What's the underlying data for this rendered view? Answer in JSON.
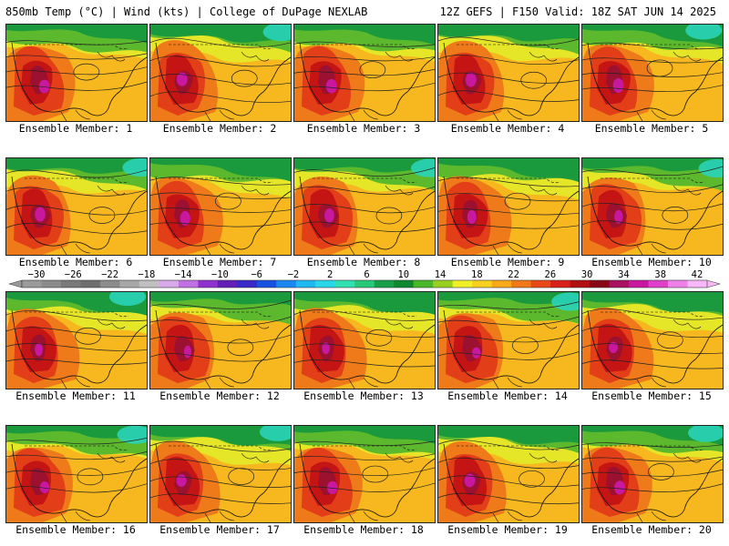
{
  "header": {
    "title_left": "850mb Temp (°C) | Wind (kts) | College of DuPage NEXLAB",
    "title_right": "12Z GEFS | F150 Valid: 18Z SAT JUN 14 2025"
  },
  "panel_label_prefix": "Ensemble Member: ",
  "members": [
    1,
    2,
    3,
    4,
    5,
    6,
    7,
    8,
    9,
    10,
    11,
    12,
    13,
    14,
    15,
    16,
    17,
    18,
    19,
    20
  ],
  "colorbar": {
    "tick_labels": [
      "−30",
      "−26",
      "−22",
      "−18",
      "−14",
      "−10",
      "−6",
      "−2",
      "2",
      "6",
      "10",
      "14",
      "18",
      "22",
      "26",
      "30",
      "34",
      "38",
      "42"
    ],
    "colors": [
      "#9a9a9a",
      "#8a8a8a",
      "#7a7a7a",
      "#6e6e6e",
      "#8c8c8c",
      "#a8a8a8",
      "#c0c0c0",
      "#d8a8e8",
      "#c070e0",
      "#9030d0",
      "#6020b8",
      "#3828c8",
      "#1850e0",
      "#1888f0",
      "#20b8f0",
      "#28d8e8",
      "#30e0b0",
      "#28c878",
      "#18a048",
      "#108830",
      "#48b828",
      "#98d020",
      "#f0f028",
      "#f8d020",
      "#f8a818",
      "#f07818",
      "#e84818",
      "#d82018",
      "#b01010",
      "#880818",
      "#a81060",
      "#c818a0",
      "#e040c8",
      "#f080e8",
      "#f8b8f8"
    ]
  },
  "map_colors": {
    "cold": "#1a9a3c",
    "cool": "#5cb82c",
    "mild": "#e6e628",
    "warm": "#f6b81e",
    "hot": "#ee7a1a",
    "hotter": "#e23e18",
    "very_hot": "#c41414",
    "extreme": "#9c1030",
    "peak": "#c818a0",
    "teal": "#2ad4b8"
  }
}
